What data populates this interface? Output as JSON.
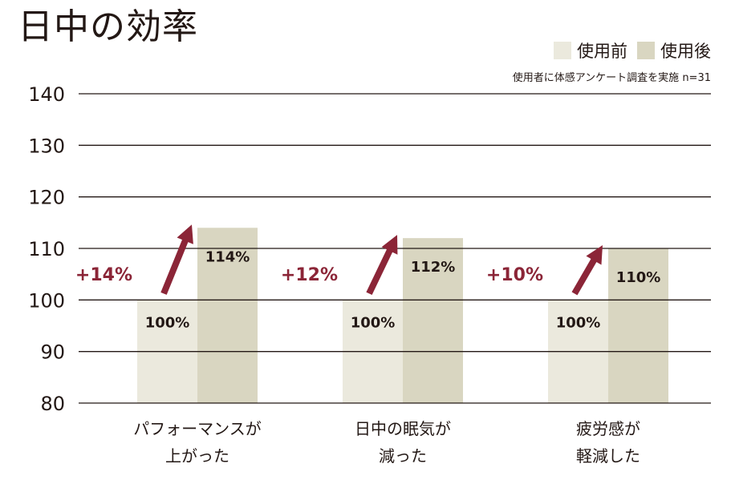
{
  "title": "日中の効率",
  "legend": [
    {
      "label": "使用前",
      "color": "#ebe9dd"
    },
    {
      "label": "使用後",
      "color": "#d9d6c1"
    }
  ],
  "note": "使用者に体感アンケート調査を実施 n=31",
  "colors": {
    "arrow": "#8b2537",
    "grid": "#231815",
    "text": "#231815"
  },
  "chart_data": {
    "type": "bar",
    "categories": [
      [
        "パフォーマンスが",
        "上がった"
      ],
      [
        "日中の眠気が",
        "減った"
      ],
      [
        "疲労感が",
        "軽減した"
      ]
    ],
    "series": [
      {
        "name": "使用前",
        "values": [
          100,
          100,
          100
        ]
      },
      {
        "name": "使用後",
        "values": [
          114,
          112,
          110
        ]
      }
    ],
    "value_labels": [
      [
        "100%",
        "114%"
      ],
      [
        "100%",
        "112%"
      ],
      [
        "100%",
        "110%"
      ]
    ],
    "delta_labels": [
      "+14%",
      "+12%",
      "+10%"
    ],
    "ylim": [
      80,
      140
    ],
    "yticks": [
      80,
      90,
      100,
      110,
      120,
      130,
      140
    ],
    "grid": true,
    "legend_position": "top-right"
  }
}
